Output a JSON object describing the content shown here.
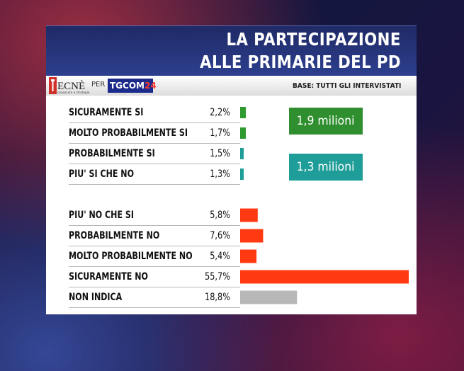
{
  "header": {
    "title_line1": "LA PARTECIPAZIONE",
    "title_line2": "ALLE PRIMARIE DEL PD",
    "base": "BASE: TUTTI GLI INTERVISTATI",
    "logo_tecne": "TECNÈ",
    "logo_tecne_tagline": "conoscere e strategie",
    "per": "PER",
    "logo_tgcom": "TGCOM",
    "logo_tgcom_num": "24"
  },
  "callouts": [
    {
      "text": "1,9 milioni",
      "color": "#2f8f2f"
    },
    {
      "text": "1,3 milioni",
      "color": "#1f9d98"
    }
  ],
  "chart_data": {
    "type": "bar",
    "orientation": "horizontal",
    "title": "LA PARTECIPAZIONE ALLE PRIMARIE DEL PD",
    "xlim": [
      0,
      55.7
    ],
    "categories": [
      "SICURAMENTE SI",
      "MOLTO PROBABILMENTE SI",
      "PROBABILMENTE SI",
      "PIU' SI CHE NO",
      "PIU' NO CHE SI",
      "PROBABILMENTE NO",
      "MOLTO PROBABILMENTE NO",
      "SICURAMENTE NO",
      "NON INDICA"
    ],
    "values": [
      2.2,
      1.7,
      1.5,
      1.3,
      5.8,
      7.6,
      5.4,
      55.7,
      18.8
    ],
    "value_labels": [
      "2,2%",
      "1,7%",
      "1,5%",
      "1,3%",
      "5,8%",
      "7,6%",
      "5,4%",
      "55,7%",
      "18,8%"
    ],
    "colors": [
      "#2f9a2f",
      "#2f9a2f",
      "#1f9d98",
      "#1f9d98",
      "#ff3a12",
      "#ff3a12",
      "#ff3a12",
      "#ff3a12",
      "#b8b8b8"
    ]
  }
}
